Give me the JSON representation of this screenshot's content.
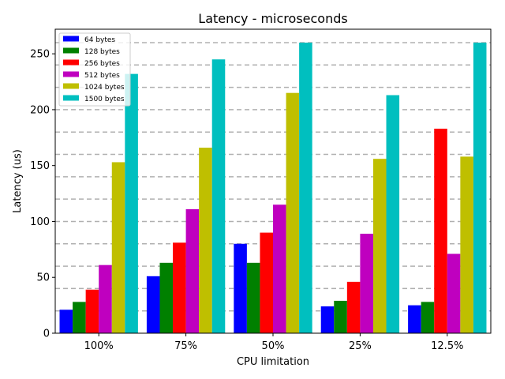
{
  "chart_data": {
    "type": "bar",
    "title": "Latency - microseconds",
    "xlabel": "CPU limitation",
    "ylabel": "Latency (us)",
    "categories": [
      "100%",
      "75%",
      "50%",
      "25%",
      "12.5%"
    ],
    "ylim": [
      0,
      272
    ],
    "yticks": [
      0,
      50,
      100,
      150,
      200,
      250
    ],
    "grid": "horizontal dashed at 20-unit intervals",
    "legend_position": "top-left",
    "series": [
      {
        "name": "64 bytes",
        "color": "#0000ff",
        "values": [
          21,
          51,
          80,
          24,
          25
        ]
      },
      {
        "name": "128 bytes",
        "color": "#008000",
        "values": [
          28,
          63,
          63,
          29,
          28
        ]
      },
      {
        "name": "256 bytes",
        "color": "#ff0000",
        "values": [
          39,
          81,
          90,
          46,
          183
        ]
      },
      {
        "name": "512 bytes",
        "color": "#bf00bf",
        "values": [
          61,
          111,
          115,
          89,
          71
        ]
      },
      {
        "name": "1024 bytes",
        "color": "#bfbf00",
        "values": [
          153,
          166,
          215,
          156,
          158
        ]
      },
      {
        "name": "1500 bytes",
        "color": "#00bfbf",
        "values": [
          232,
          245,
          260,
          213,
          260
        ]
      }
    ]
  }
}
